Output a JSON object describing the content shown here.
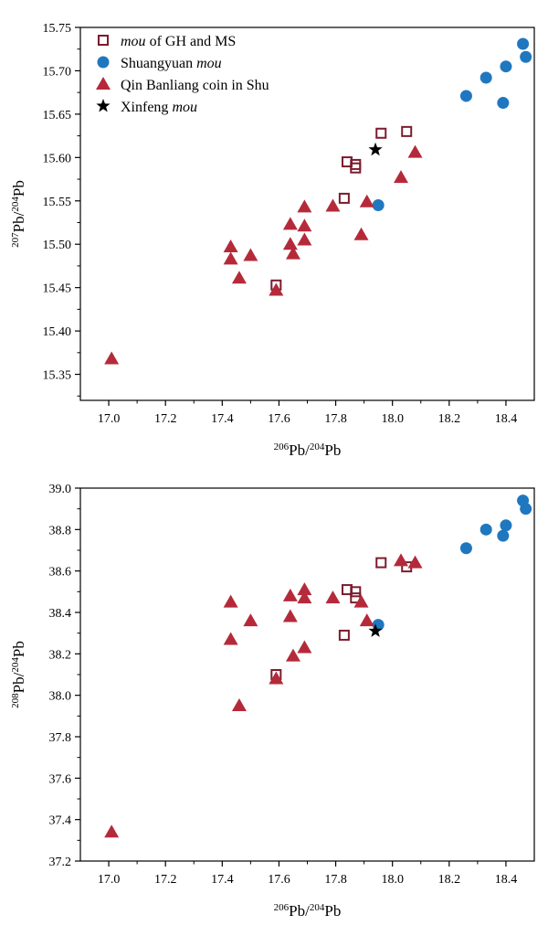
{
  "legend": [
    {
      "id": "gh_ms",
      "label_pre": "",
      "label_italic": "mou",
      "label_post": " of GH and MS",
      "marker": "open-square",
      "color": "#7b1c2e"
    },
    {
      "id": "shuangyuan",
      "label_pre": "Shuangyuan ",
      "label_italic": "mou",
      "label_post": "",
      "marker": "circle",
      "color": "#1f77c0"
    },
    {
      "id": "qin",
      "label_pre": "Qin Banliang coin in Shu",
      "label_italic": "",
      "label_post": "",
      "marker": "triangle",
      "color": "#b52a3a"
    },
    {
      "id": "xinfeng",
      "label_pre": "Xinfeng ",
      "label_italic": "mou",
      "label_post": "",
      "marker": "star",
      "color": "#000000"
    }
  ],
  "chart_data": [
    {
      "type": "scatter",
      "xlabel": {
        "sup1": "206",
        "base1": "Pb/",
        "sup2": "204",
        "base2": "Pb"
      },
      "ylabel": {
        "sup1": "207",
        "base1": "Pb/",
        "sup2": "204",
        "base2": "Pb"
      },
      "xlim": [
        16.9,
        18.5
      ],
      "ylim": [
        15.32,
        15.75
      ],
      "xticks": [
        17.0,
        17.2,
        17.4,
        17.6,
        17.8,
        18.0,
        18.2,
        18.4
      ],
      "yticks": [
        15.35,
        15.4,
        15.45,
        15.5,
        15.55,
        15.6,
        15.65,
        15.7,
        15.75
      ],
      "xdecimals": 1,
      "ydecimals": 2,
      "series": [
        {
          "id": "gh_ms",
          "points": [
            [
              17.59,
              15.453
            ],
            [
              17.83,
              15.553
            ],
            [
              17.84,
              15.595
            ],
            [
              17.87,
              15.592
            ],
            [
              17.87,
              15.588
            ],
            [
              17.96,
              15.628
            ],
            [
              18.05,
              15.63
            ]
          ]
        },
        {
          "id": "shuangyuan",
          "points": [
            [
              17.95,
              15.545
            ],
            [
              18.26,
              15.671
            ],
            [
              18.33,
              15.692
            ],
            [
              18.39,
              15.663
            ],
            [
              18.4,
              15.705
            ],
            [
              18.46,
              15.731
            ],
            [
              18.47,
              15.716
            ]
          ]
        },
        {
          "id": "qin",
          "points": [
            [
              17.01,
              15.368
            ],
            [
              17.43,
              15.497
            ],
            [
              17.43,
              15.483
            ],
            [
              17.46,
              15.461
            ],
            [
              17.5,
              15.487
            ],
            [
              17.59,
              15.447
            ],
            [
              17.64,
              15.523
            ],
            [
              17.64,
              15.5
            ],
            [
              17.65,
              15.489
            ],
            [
              17.69,
              15.543
            ],
            [
              17.69,
              15.521
            ],
            [
              17.69,
              15.505
            ],
            [
              17.79,
              15.544
            ],
            [
              17.89,
              15.511
            ],
            [
              17.91,
              15.549
            ],
            [
              18.03,
              15.577
            ],
            [
              18.08,
              15.606
            ]
          ]
        },
        {
          "id": "xinfeng",
          "points": [
            [
              17.94,
              15.609
            ]
          ]
        }
      ]
    },
    {
      "type": "scatter",
      "xlabel": {
        "sup1": "206",
        "base1": "Pb/",
        "sup2": "204",
        "base2": "Pb"
      },
      "ylabel": {
        "sup1": "208",
        "base1": "Pb/",
        "sup2": "204",
        "base2": "Pb"
      },
      "xlim": [
        16.9,
        18.5
      ],
      "ylim": [
        37.2,
        39.0
      ],
      "xticks": [
        17.0,
        17.2,
        17.4,
        17.6,
        17.8,
        18.0,
        18.2,
        18.4
      ],
      "yticks": [
        37.2,
        37.4,
        37.6,
        37.8,
        38.0,
        38.2,
        38.4,
        38.6,
        38.8,
        39.0
      ],
      "xdecimals": 1,
      "ydecimals": 1,
      "series": [
        {
          "id": "gh_ms",
          "points": [
            [
              17.59,
              38.1
            ],
            [
              17.83,
              38.29
            ],
            [
              17.84,
              38.51
            ],
            [
              17.87,
              38.5
            ],
            [
              17.87,
              38.47
            ],
            [
              17.96,
              38.64
            ],
            [
              18.05,
              38.62
            ]
          ]
        },
        {
          "id": "shuangyuan",
          "points": [
            [
              17.95,
              38.34
            ],
            [
              18.26,
              38.71
            ],
            [
              18.33,
              38.8
            ],
            [
              18.39,
              38.77
            ],
            [
              18.4,
              38.82
            ],
            [
              18.46,
              38.94
            ],
            [
              18.47,
              38.9
            ]
          ]
        },
        {
          "id": "qin",
          "points": [
            [
              17.01,
              37.34
            ],
            [
              17.43,
              38.45
            ],
            [
              17.43,
              38.27
            ],
            [
              17.46,
              37.95
            ],
            [
              17.5,
              38.36
            ],
            [
              17.59,
              38.08
            ],
            [
              17.64,
              38.48
            ],
            [
              17.64,
              38.38
            ],
            [
              17.65,
              38.19
            ],
            [
              17.69,
              38.51
            ],
            [
              17.69,
              38.47
            ],
            [
              17.69,
              38.23
            ],
            [
              17.79,
              38.47
            ],
            [
              17.89,
              38.45
            ],
            [
              17.91,
              38.36
            ],
            [
              18.03,
              38.65
            ],
            [
              18.08,
              38.64
            ]
          ]
        },
        {
          "id": "xinfeng",
          "points": [
            [
              17.94,
              38.31
            ]
          ]
        }
      ]
    }
  ]
}
